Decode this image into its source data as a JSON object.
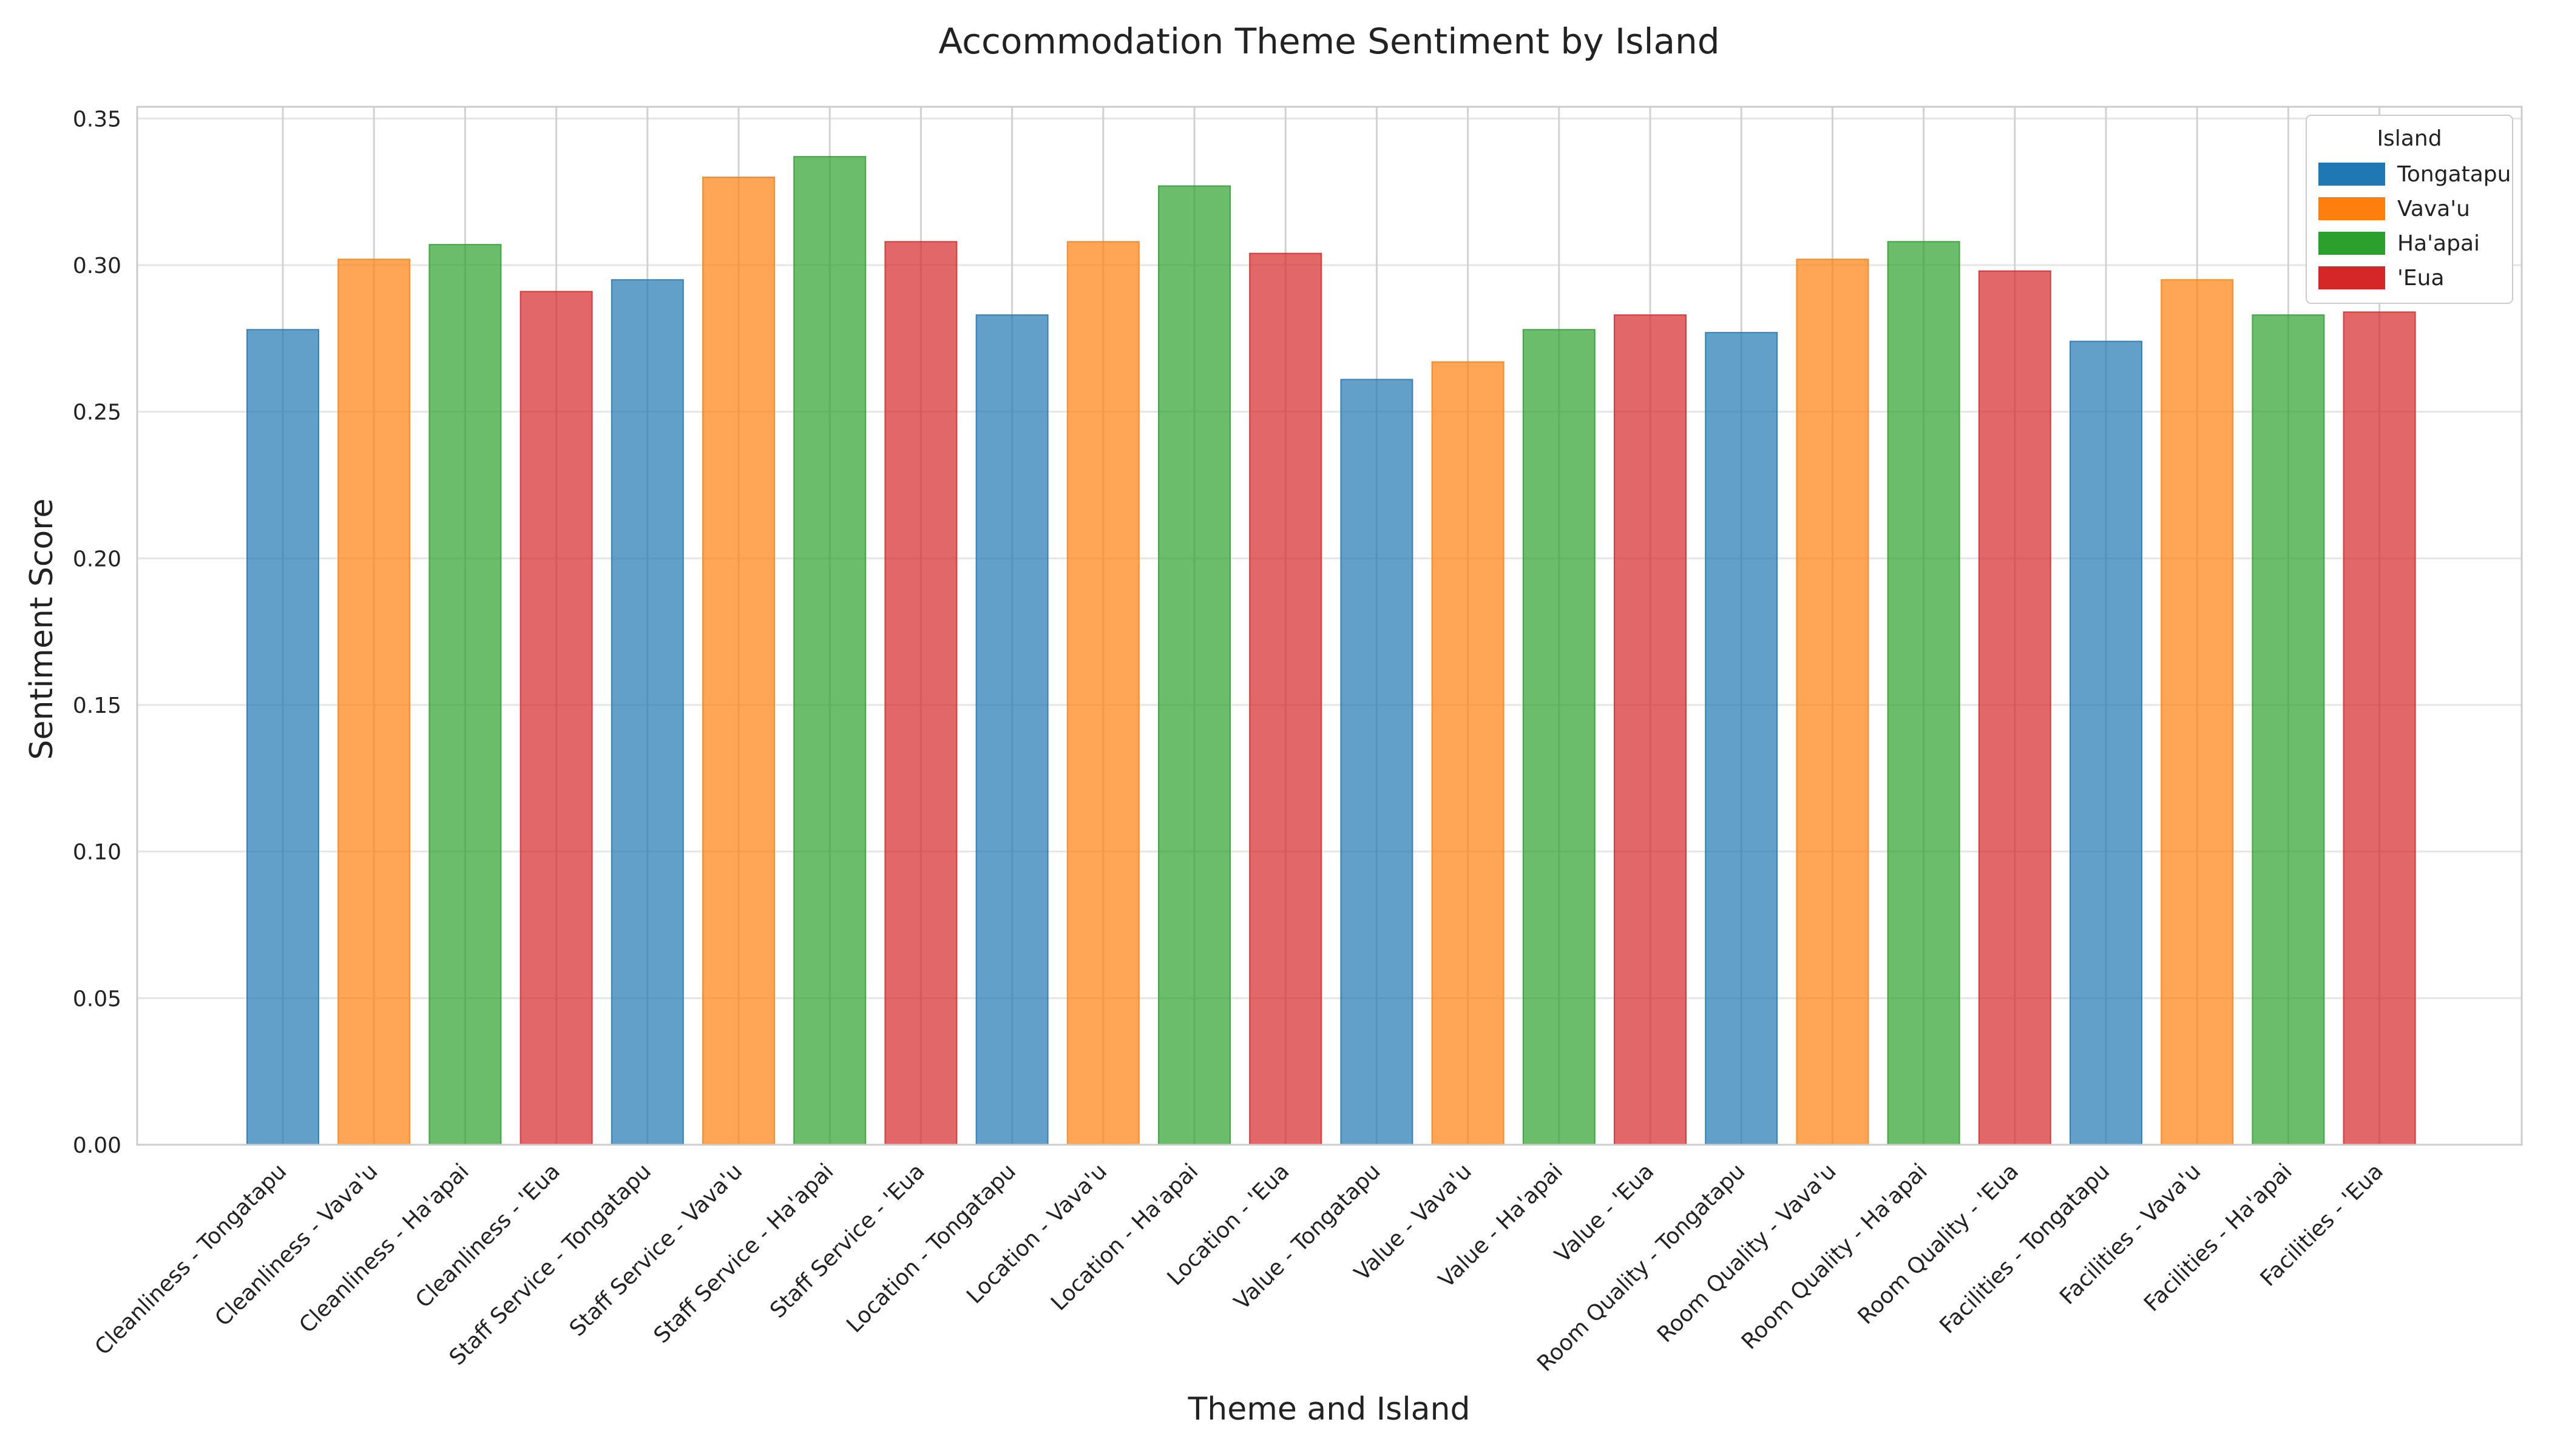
{
  "chart_data": {
    "type": "bar",
    "title": "Accommodation Theme Sentiment by Island",
    "xlabel": "Theme and Island",
    "ylabel": "Sentiment Score",
    "ylim": [
      0,
      0.354
    ],
    "yticks": [
      "0.00",
      "0.05",
      "0.10",
      "0.15",
      "0.20",
      "0.25",
      "0.30",
      "0.35"
    ],
    "grid": true,
    "legend": {
      "title": "Island",
      "placement": "top-right",
      "entries": [
        {
          "name": "Tongatapu",
          "color": "#1f77b4"
        },
        {
          "name": "Vava'u",
          "color": "#ff7f0e"
        },
        {
          "name": "Ha'apai",
          "color": "#2ca02c"
        },
        {
          "name": "'Eua",
          "color": "#d62728"
        }
      ]
    },
    "categories": [
      "Cleanliness - Tongatapu",
      "Cleanliness - Vava'u",
      "Cleanliness - Ha'apai",
      "Cleanliness - 'Eua",
      "Staff Service - Tongatapu",
      "Staff Service - Vava'u",
      "Staff Service - Ha'apai",
      "Staff Service - 'Eua",
      "Location - Tongatapu",
      "Location - Vava'u",
      "Location - Ha'apai",
      "Location - 'Eua",
      "Value - Tongatapu",
      "Value - Vava'u",
      "Value - Ha'apai",
      "Value - 'Eua",
      "Room Quality - Tongatapu",
      "Room Quality - Vava'u",
      "Room Quality - Ha'apai",
      "Room Quality - 'Eua",
      "Facilities - Tongatapu",
      "Facilities - Vava'u",
      "Facilities - Ha'apai",
      "Facilities - 'Eua"
    ],
    "values": [
      0.278,
      0.302,
      0.307,
      0.291,
      0.295,
      0.33,
      0.337,
      0.308,
      0.283,
      0.308,
      0.327,
      0.304,
      0.261,
      0.267,
      0.278,
      0.283,
      0.277,
      0.302,
      0.308,
      0.298,
      0.274,
      0.295,
      0.283,
      0.284
    ],
    "bar_islands": [
      "Tongatapu",
      "Vava'u",
      "Ha'apai",
      "'Eua",
      "Tongatapu",
      "Vava'u",
      "Ha'apai",
      "'Eua",
      "Tongatapu",
      "Vava'u",
      "Ha'apai",
      "'Eua",
      "Tongatapu",
      "Vava'u",
      "Ha'apai",
      "'Eua",
      "Tongatapu",
      "Vava'u",
      "Ha'apai",
      "'Eua",
      "Tongatapu",
      "Vava'u",
      "Ha'apai",
      "'Eua"
    ],
    "colors": {
      "Tongatapu": "#1f77b4",
      "Vava'u": "#ff7f0e",
      "Ha'apai": "#2ca02c",
      "'Eua": "#d62728",
      "grid": "#e6e6e6",
      "axis": "#cccccc"
    }
  }
}
